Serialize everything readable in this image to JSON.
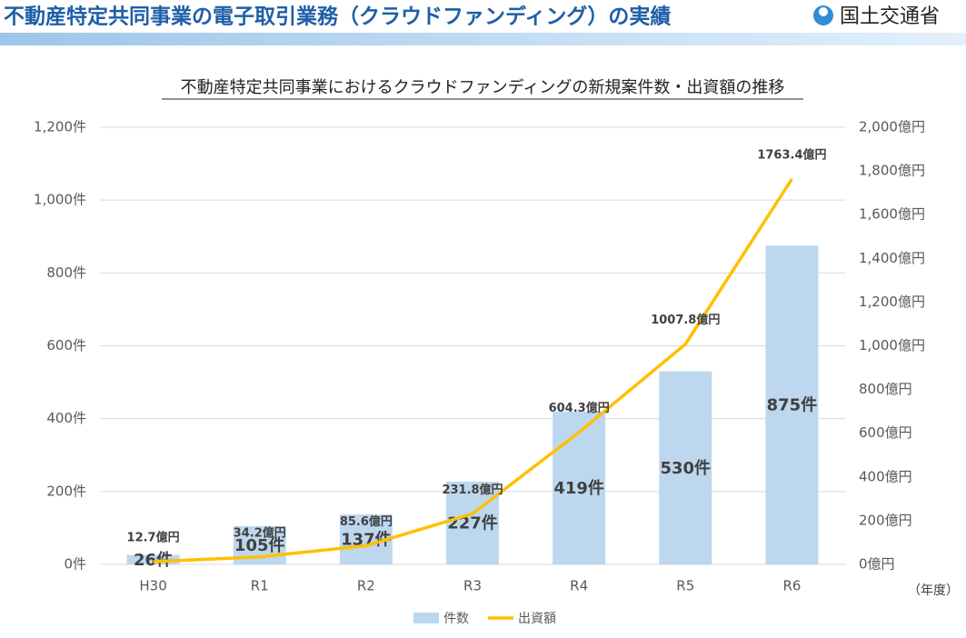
{
  "header": {
    "title": "不動産特定共同事業の電子取引業務（クラウドファンディング）の実績",
    "logo": "国土交通省"
  },
  "chart_data": {
    "type": "bar",
    "title": "不動産特定共同事業におけるクラウドファンディングの新規案件数・出資額の推移",
    "categories": [
      "H30",
      "R1",
      "R2",
      "R3",
      "R4",
      "R5",
      "R6"
    ],
    "x_unit": "（年度）",
    "series": [
      {
        "name": "件数",
        "type": "bar",
        "color": "#bdd7ee",
        "values": [
          26,
          105,
          137,
          227,
          419,
          530,
          875
        ],
        "value_labels": [
          "26件",
          "105件",
          "137件",
          "227件",
          "419件",
          "530件",
          "875件"
        ]
      },
      {
        "name": "出資額",
        "type": "line",
        "axis": "y2",
        "color": "#ffc000",
        "values": [
          12.7,
          34.2,
          85.6,
          231.8,
          604.3,
          1007.8,
          1763.4
        ],
        "value_labels": [
          "12.7億円",
          "34.2億円",
          "85.6億円",
          "231.8億円",
          "604.3億円",
          "1007.8億円",
          "1763.4億円"
        ]
      }
    ],
    "ylim": [
      0,
      1200
    ],
    "yticks": [
      {
        "value": 0,
        "label": "0件"
      },
      {
        "value": 200,
        "label": "200件"
      },
      {
        "value": 400,
        "label": "400件"
      },
      {
        "value": 600,
        "label": "600件"
      },
      {
        "value": 800,
        "label": "800件"
      },
      {
        "value": 1000,
        "label": "1,000件"
      },
      {
        "value": 1200,
        "label": "1,200件"
      }
    ],
    "y2lim": [
      0,
      2000
    ],
    "y2ticks": [
      {
        "value": 0,
        "label": "0億円"
      },
      {
        "value": 200,
        "label": "200億円"
      },
      {
        "value": 400,
        "label": "400億円"
      },
      {
        "value": 600,
        "label": "600億円"
      },
      {
        "value": 800,
        "label": "800億円"
      },
      {
        "value": 1000,
        "label": "1,000億円"
      },
      {
        "value": 1200,
        "label": "1,200億円"
      },
      {
        "value": 1400,
        "label": "1,400億円"
      },
      {
        "value": 1600,
        "label": "1,600億円"
      },
      {
        "value": 1800,
        "label": "1,800億円"
      },
      {
        "value": 2000,
        "label": "2,000億円"
      }
    ],
    "grid": true,
    "legend": "bottom"
  }
}
